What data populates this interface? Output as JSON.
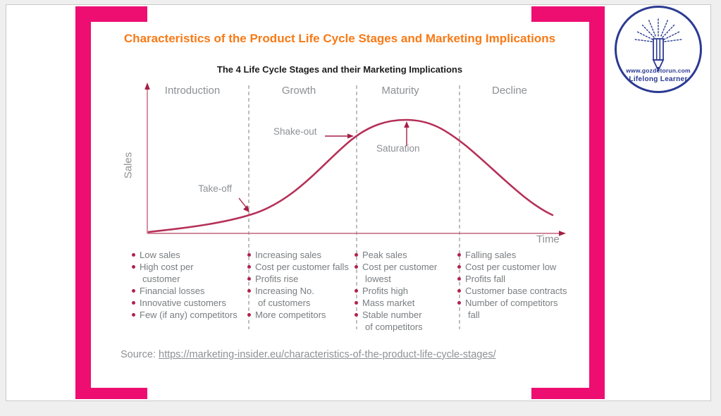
{
  "title": "Characteristics of the Product Life Cycle Stages and Marketing Implications",
  "chart": {
    "subtitle": "The 4 Life Cycle Stages and their Marketing Implications",
    "y_axis_label": "Sales",
    "x_axis_label": "Time",
    "annotations": {
      "take_off": "Take-off",
      "shake_out": "Shake-out",
      "saturation": "Saturation"
    }
  },
  "chart_data": {
    "type": "line",
    "title": "The 4 Life Cycle Stages and their Marketing Implications",
    "xlabel": "Time",
    "ylabel": "Sales",
    "categories": [
      "Introduction",
      "Growth",
      "Maturity",
      "Decline"
    ],
    "description": "Conceptual bell-shaped sales curve over time: low slow rise in Introduction, take-off at Introduction/Growth boundary, steep rise through Growth, shake-out near Growth/Maturity boundary, peak (saturation) in Maturity, steady fall through Decline.",
    "annotations": [
      "Take-off",
      "Shake-out",
      "Saturation"
    ],
    "grid": "dashed vertical stage dividers only",
    "axes_numeric": false
  },
  "stages": [
    {
      "label": "Introduction",
      "bullets": [
        [
          "Low sales"
        ],
        [
          "High cost per",
          "customer"
        ],
        [
          "Financial losses"
        ],
        [
          "Innovative customers"
        ],
        [
          "Few (if any) competitors"
        ]
      ]
    },
    {
      "label": "Growth",
      "bullets": [
        [
          "Increasing sales"
        ],
        [
          "Cost per customer falls"
        ],
        [
          "Profits rise"
        ],
        [
          "Increasing No.",
          "of customers"
        ],
        [
          "More competitors"
        ]
      ]
    },
    {
      "label": "Maturity",
      "bullets": [
        [
          "Peak sales"
        ],
        [
          "Cost per customer",
          "lowest"
        ],
        [
          "Profits high"
        ],
        [
          "Mass market"
        ],
        [
          "Stable number",
          "of competitors"
        ]
      ]
    },
    {
      "label": "Decline",
      "bullets": [
        [
          "Falling sales"
        ],
        [
          "Cost per customer low"
        ],
        [
          "Profits fall"
        ],
        [
          "Customer base contracts"
        ],
        [
          "Number of competitors",
          "fall"
        ]
      ]
    }
  ],
  "source": {
    "prefix": "Source: ",
    "link_text": "https://marketing-insider.eu/characteristics-of-the-product-life-cycle-stages/"
  },
  "logo": {
    "line1": "www.gozdetorun.com",
    "line2": "Lifelong Learner"
  },
  "colors": {
    "accent_pink": "#ee0e72",
    "title_orange": "#f87a16",
    "curve": "#b53057",
    "arrow": "#a51f45",
    "bullet_dot": "#b0234a",
    "logo_navy": "#2b3a92"
  }
}
